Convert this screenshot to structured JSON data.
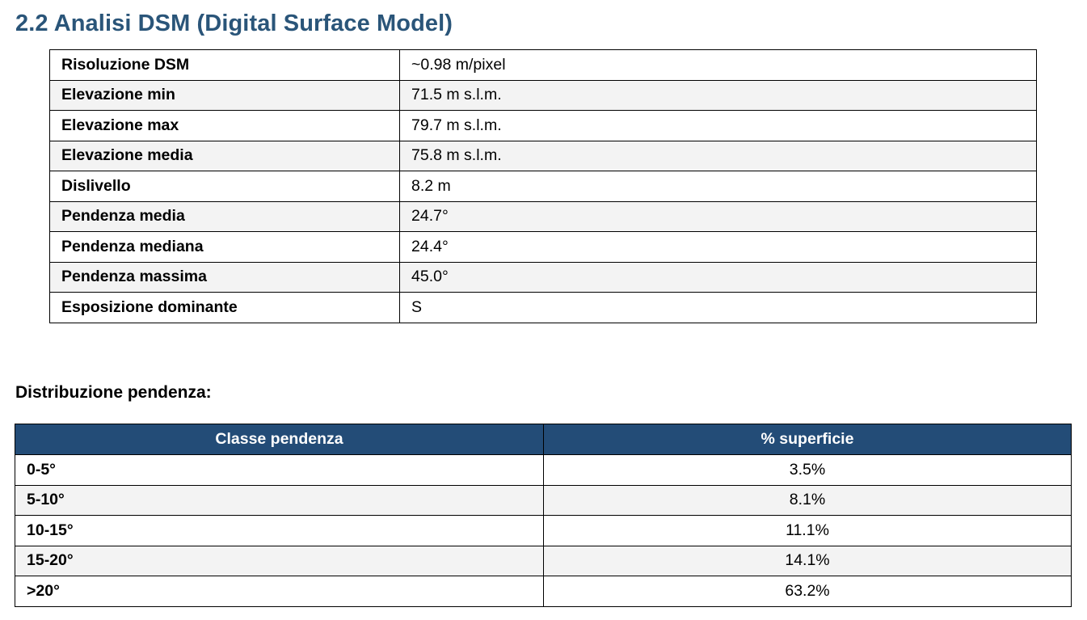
{
  "section": {
    "title": "2.2 Analisi DSM (Digital Surface Model)"
  },
  "properties": [
    {
      "label": "Risoluzione DSM",
      "value": "~0.98 m/pixel"
    },
    {
      "label": "Elevazione min",
      "value": "71.5 m s.l.m."
    },
    {
      "label": "Elevazione max",
      "value": "79.7 m s.l.m."
    },
    {
      "label": "Elevazione media",
      "value": "75.8 m s.l.m."
    },
    {
      "label": "Dislivello",
      "value": "8.2 m"
    },
    {
      "label": "Pendenza media",
      "value": "24.7°"
    },
    {
      "label": "Pendenza mediana",
      "value": "24.4°"
    },
    {
      "label": "Pendenza massima",
      "value": "45.0°"
    },
    {
      "label": "Esposizione dominante",
      "value": "S"
    }
  ],
  "distribution": {
    "title": "Distribuzione pendenza:",
    "headers": [
      "Classe pendenza",
      "% superficie"
    ],
    "rows": [
      {
        "class": "0-5°",
        "percent": "3.5%"
      },
      {
        "class": "5-10°",
        "percent": "8.1%"
      },
      {
        "class": "10-15°",
        "percent": "11.1%"
      },
      {
        "class": "15-20°",
        "percent": "14.1%"
      },
      {
        "class": ">20°",
        "percent": "63.2%"
      }
    ]
  },
  "colors": {
    "heading": "#2a5579",
    "table_header_bg": "#234c77",
    "row_alt_bg": "#f3f3f3"
  }
}
